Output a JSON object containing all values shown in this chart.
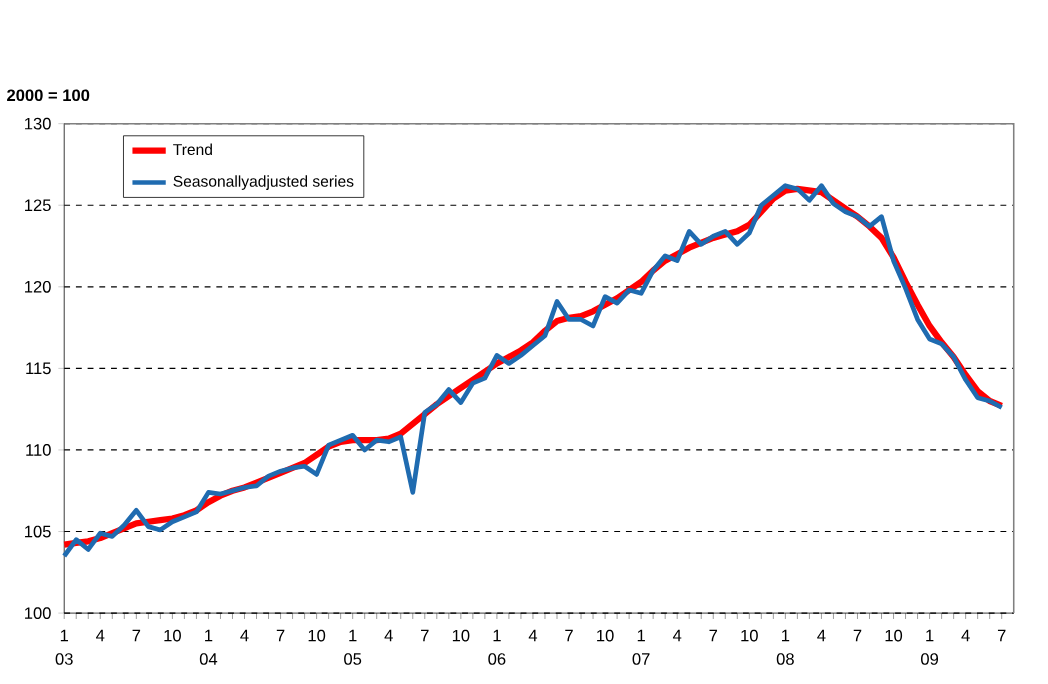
{
  "chart_data": {
    "type": "line",
    "ylabel": "2000 = 100",
    "categories": [
      "1",
      null,
      null,
      "4",
      null,
      null,
      "7",
      null,
      null,
      "10",
      null,
      null,
      "1",
      null,
      null,
      "4",
      null,
      null,
      "7",
      null,
      null,
      "10",
      null,
      null,
      "1",
      null,
      null,
      "4",
      null,
      null,
      "7",
      null,
      null,
      "10",
      null,
      null,
      "1",
      null,
      null,
      "4",
      null,
      null,
      "7",
      null,
      null,
      "10",
      null,
      null,
      "1",
      null,
      null,
      "4",
      null,
      null,
      "7",
      null,
      null,
      "10",
      null,
      null,
      "1",
      null,
      null,
      "4",
      null,
      null,
      "7",
      null,
      null,
      "10",
      null,
      null,
      "1",
      null,
      null,
      "4",
      null,
      null,
      "7"
    ],
    "annotations": [
      "03",
      "04",
      "05",
      "06",
      "07",
      "08",
      "09"
    ],
    "ylim": [
      100,
      130
    ],
    "yticks": [
      100,
      105,
      110,
      115,
      120,
      125,
      130
    ],
    "grid": "y",
    "legend": "top left",
    "marker": "none",
    "line_style": "solid",
    "series": [
      {
        "name": "Trend",
        "color": "#ff0000",
        "values": [
          104.2,
          104.3,
          104.4,
          104.6,
          104.9,
          105.2,
          105.5,
          105.6,
          105.7,
          105.8,
          106.0,
          106.3,
          106.8,
          107.2,
          107.5,
          107.7,
          108.0,
          108.3,
          108.6,
          108.9,
          109.2,
          109.7,
          110.2,
          110.5,
          110.6,
          110.6,
          110.6,
          110.7,
          111.0,
          111.6,
          112.2,
          112.8,
          113.3,
          113.8,
          114.3,
          114.8,
          115.3,
          115.7,
          116.1,
          116.6,
          117.3,
          117.9,
          118.1,
          118.2,
          118.5,
          118.9,
          119.3,
          119.8,
          120.3,
          121.0,
          121.6,
          122.0,
          122.4,
          122.7,
          123.0,
          123.2,
          123.4,
          123.8,
          124.6,
          125.4,
          125.9,
          126.0,
          125.9,
          125.8,
          125.3,
          124.8,
          124.3,
          123.7,
          123.0,
          121.8,
          120.3,
          118.9,
          117.6,
          116.6,
          115.7,
          114.6,
          113.6,
          113.0,
          112.7
        ]
      },
      {
        "name": "Seasonallyadjusted series",
        "color": "#1f6bb0",
        "values": [
          103.5,
          104.5,
          103.9,
          104.9,
          104.7,
          105.4,
          106.3,
          105.3,
          105.1,
          105.6,
          105.9,
          106.2,
          107.4,
          107.3,
          107.5,
          107.7,
          107.8,
          108.4,
          108.7,
          108.9,
          109.0,
          108.5,
          110.3,
          110.6,
          110.9,
          110.0,
          110.6,
          110.5,
          110.8,
          107.4,
          112.3,
          112.8,
          113.7,
          112.9,
          114.1,
          114.4,
          115.8,
          115.3,
          115.8,
          116.4,
          117.0,
          119.1,
          118.0,
          118.0,
          117.6,
          119.4,
          119.0,
          119.8,
          119.6,
          121.0,
          121.9,
          121.6,
          123.4,
          122.6,
          123.1,
          123.4,
          122.6,
          123.3,
          125.0,
          125.6,
          126.2,
          126.0,
          125.3,
          126.2,
          125.1,
          124.6,
          124.3,
          123.7,
          124.3,
          121.6,
          119.9,
          118.0,
          116.8,
          116.5,
          115.7,
          114.3,
          113.2,
          113.0,
          112.6
        ]
      }
    ]
  }
}
